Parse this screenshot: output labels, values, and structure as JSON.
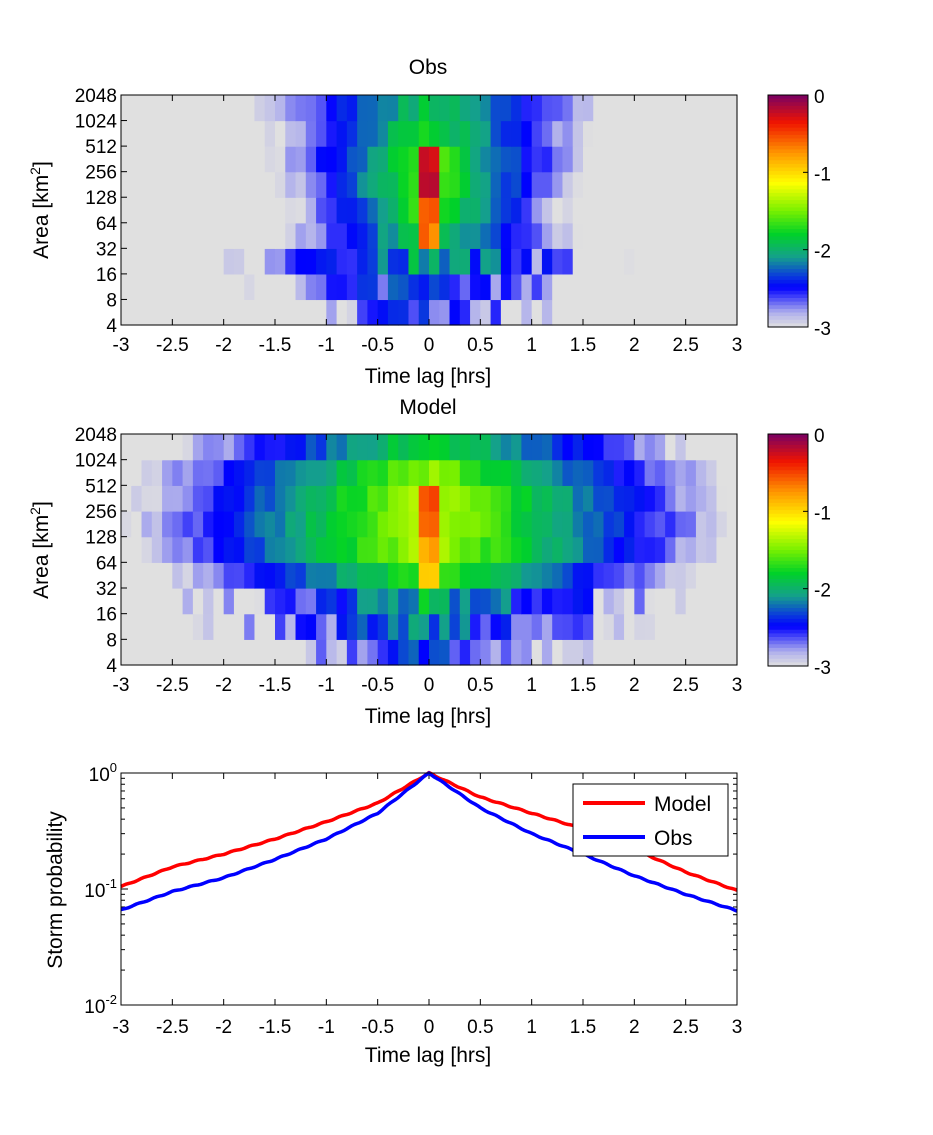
{
  "colors": {
    "model_line": "#ff0000",
    "obs_line": "#0000ff",
    "background": "#ffffff"
  },
  "colormap": "jet-like (light gray → blue → green → yellow → red → dark purple)",
  "chart_data": [
    {
      "type": "heatmap",
      "title": "Obs",
      "xlabel": "Time lag [hrs]",
      "ylabel": "Area [km",
      "ylabel_superscript": "2",
      "ylabel_suffix": "]",
      "xlim": [
        -3,
        3
      ],
      "xticks": [
        "-3",
        "-2.5",
        "-2",
        "-1.5",
        "-1",
        "-0.5",
        "0",
        "0.5",
        "1",
        "1.5",
        "2",
        "2.5",
        "3"
      ],
      "yticks": [
        "4",
        "8",
        "16",
        "32",
        "64",
        "128",
        "256",
        "512",
        "1024",
        "2048"
      ],
      "value_description": "log10 storm probability",
      "clim": [
        -3,
        0
      ],
      "colorbar_ticks": [
        "0",
        "-1",
        "-2",
        "-3"
      ],
      "row_profile": [
        -2.45,
        -2.25,
        -2.05,
        -1.75,
        -1.55,
        -1.5,
        -1.55,
        -1.7,
        -1.85,
        -2.05
      ],
      "time_decay_per_hr": [
        0.55,
        0.55,
        0.55,
        0.9,
        1.1,
        1.05,
        0.95,
        0.85,
        0.7,
        0.55
      ],
      "peak_value": -0.15
    },
    {
      "type": "heatmap",
      "title": "Model",
      "xlabel": "Time lag [hrs]",
      "ylabel": "Area [km",
      "ylabel_superscript": "2",
      "ylabel_suffix": "]",
      "xlim": [
        -3,
        3
      ],
      "xticks": [
        "-3",
        "-2.5",
        "-2",
        "-1.5",
        "-1",
        "-0.5",
        "0",
        "0.5",
        "1",
        "1.5",
        "2",
        "2.5",
        "3"
      ],
      "yticks": [
        "4",
        "8",
        "16",
        "32",
        "64",
        "128",
        "256",
        "512",
        "1024",
        "2048"
      ],
      "value_description": "log10 storm probability",
      "clim": [
        -3,
        0
      ],
      "colorbar_ticks": [
        "0",
        "-1",
        "-2",
        "-3"
      ],
      "row_profile": [
        -2.45,
        -2.2,
        -2.0,
        -1.6,
        -1.3,
        -1.25,
        -1.3,
        -1.45,
        -1.75,
        -2.05
      ],
      "time_decay_per_hr": [
        0.45,
        0.45,
        0.45,
        0.55,
        0.6,
        0.6,
        0.6,
        0.55,
        0.5,
        0.45
      ],
      "peak_value": -0.4
    },
    {
      "type": "line",
      "xlabel": "Time lag [hrs]",
      "ylabel": "Storm probability",
      "xlim": [
        -3,
        3
      ],
      "ylim": [
        0.01,
        1
      ],
      "yscale": "log",
      "xticks": [
        "-3",
        "-2.5",
        "-2",
        "-1.5",
        "-1",
        "-0.5",
        "0",
        "0.5",
        "1",
        "1.5",
        "2",
        "2.5",
        "3"
      ],
      "yticks": [
        {
          "base": "10",
          "exp": "0",
          "value": 1
        },
        {
          "base": "10",
          "exp": "-1",
          "value": 0.1
        },
        {
          "base": "10",
          "exp": "-2",
          "value": 0.01
        }
      ],
      "legend_position": "top-right",
      "x": [
        -3,
        -2.5,
        -2,
        -1.5,
        -1,
        -0.5,
        0,
        0.5,
        1,
        1.5,
        2,
        2.5,
        3
      ],
      "series": [
        {
          "name": "Model",
          "color": "#ff0000",
          "values": [
            0.105,
            0.155,
            0.2,
            0.27,
            0.38,
            0.55,
            1.0,
            0.62,
            0.45,
            0.33,
            0.22,
            0.14,
            0.097
          ]
        },
        {
          "name": "Obs",
          "color": "#0000ff",
          "values": [
            0.066,
            0.095,
            0.125,
            0.18,
            0.27,
            0.45,
            1.0,
            0.5,
            0.3,
            0.2,
            0.13,
            0.09,
            0.065
          ]
        }
      ]
    }
  ]
}
